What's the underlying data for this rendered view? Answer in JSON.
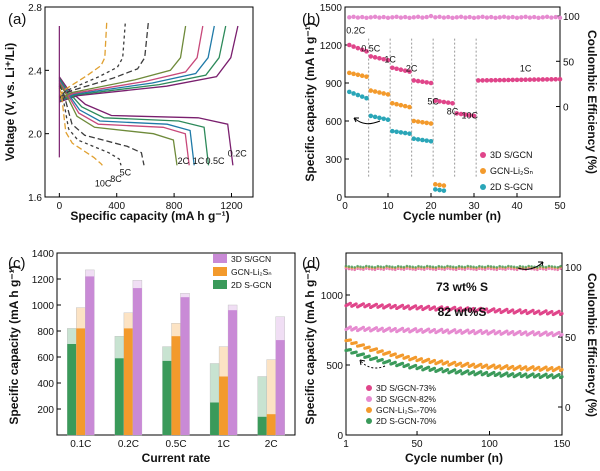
{
  "colors": {
    "c1": "#7a1f6e",
    "c2": "#2d8a5a",
    "c3": "#1f7aa8",
    "c4": "#c7487a",
    "c5": "#2a4f8f",
    "c6": "#3c3c3c",
    "c7": "#6e8a3a",
    "c8": "#e0a030",
    "pink": "#e0458a",
    "orange": "#f39a2c",
    "teal": "#2aa6b8",
    "lightpink": "#e68ad0",
    "green": "#3a9a5a",
    "lavender": "#c98ad6",
    "violet": "#c98ad6"
  },
  "chart_data": [
    {
      "panel": "(a)",
      "type": "line",
      "xlabel": "Specific capacity (mA h g⁻¹)",
      "ylabel": "Voltage (V, vs. Li⁺/Li)",
      "xlim": [
        -100,
        1350
      ],
      "ylim": [
        1.6,
        2.8
      ],
      "xticks": [
        0,
        400,
        800,
        1200
      ],
      "yticks": [
        1.6,
        2.0,
        2.4,
        2.8
      ],
      "rate_labels": [
        {
          "text": "0.2C",
          "x": 1240,
          "y": 1.855,
          "color": "c1"
        },
        {
          "text": "0.5C",
          "x": 1085,
          "y": 1.81,
          "color": "c2"
        },
        {
          "text": "1C",
          "x": 970,
          "y": 1.81,
          "color": "c3"
        },
        {
          "text": "2C",
          "x": 865,
          "y": 1.81,
          "color": "c6"
        },
        {
          "text": "5C",
          "x": 460,
          "y": 1.735,
          "color": "c6"
        },
        {
          "text": "8C",
          "x": 395,
          "y": 1.695,
          "color": "c6"
        },
        {
          "text": "10C",
          "x": 305,
          "y": 1.665,
          "color": "c6"
        }
      ],
      "series": [
        {
          "color": "c1",
          "dash": "",
          "charge_cap": 1245,
          "dis_cap": 1210,
          "upper": 2.105,
          "lower": 2.1,
          "top": 2.68
        },
        {
          "color": "c2",
          "dash": "",
          "charge_cap": 1160,
          "dis_cap": 1040,
          "upper": 2.09,
          "lower": 2.08,
          "top": 2.68
        },
        {
          "color": "c3",
          "dash": "",
          "charge_cap": 1080,
          "dis_cap": 940,
          "upper": 2.07,
          "lower": 2.06,
          "top": 2.68
        },
        {
          "color": "c4",
          "dash": "",
          "charge_cap": 1000,
          "dis_cap": 905,
          "upper": 2.05,
          "lower": 2.04,
          "top": 2.68
        },
        {
          "color": "c7",
          "dash": "",
          "charge_cap": 880,
          "dis_cap": 820,
          "upper": 2.03,
          "lower": 2.0,
          "top": 2.68
        },
        {
          "color": "c6",
          "dash": "6,3",
          "charge_cap": 620,
          "dis_cap": 590,
          "upper": 1.98,
          "lower": 1.92,
          "top": 2.7
        },
        {
          "color": "c6",
          "dash": "3,3",
          "charge_cap": 460,
          "dis_cap": 430,
          "upper": 1.95,
          "lower": 1.88,
          "top": 2.7
        },
        {
          "color": "c8",
          "dash": "6,3",
          "charge_cap": 330,
          "dis_cap": 300,
          "upper": 1.93,
          "lower": 1.85,
          "top": 2.7
        }
      ]
    },
    {
      "panel": "(b)",
      "type": "scatter",
      "xlabel": "Cycle number (n)",
      "ylabel": "Specific capacity (mA h g⁻¹)",
      "ylabel2": "Coulombic Efficiency (%)",
      "xlim": [
        0,
        50
      ],
      "ylim": [
        0,
        1500
      ],
      "ylim2": [
        -100,
        110
      ],
      "xticks": [
        0,
        10,
        20,
        30,
        40,
        50
      ],
      "yticks": [
        0,
        300,
        600,
        900,
        1200,
        1500
      ],
      "yticks2": [
        0,
        50,
        100
      ],
      "rate_labels": [
        {
          "text": "0.2C",
          "x": 2.5,
          "y": 1290
        },
        {
          "text": "0.5C",
          "x": 6,
          "y": 1150
        },
        {
          "text": "1C",
          "x": 10.5,
          "y": 1060
        },
        {
          "text": "2C",
          "x": 15.5,
          "y": 990
        },
        {
          "text": "5C",
          "x": 20.5,
          "y": 730
        },
        {
          "text": "8C",
          "x": 25,
          "y": 650
        },
        {
          "text": "10C",
          "x": 29,
          "y": 620
        },
        {
          "text": "1C",
          "x": 42,
          "y": 990
        }
      ],
      "legend": [
        "3D S/GCN",
        "GCN-Li₂Sₙ",
        "2D S-GCN"
      ],
      "series": [
        {
          "name": "3D S/GCN",
          "color": "pink",
          "segments": [
            [
              1,
              5,
              1200,
              1150
            ],
            [
              6,
              10,
              1110,
              1080
            ],
            [
              11,
              15,
              1020,
              990
            ],
            [
              16,
              20,
              920,
              900
            ],
            [
              21,
              25,
              760,
              740
            ],
            [
              26,
              30,
              660,
              640
            ],
            [
              31,
              50,
              920,
              930
            ]
          ]
        },
        {
          "name": "GCN-Li₂Sₙ",
          "color": "orange",
          "segments": [
            [
              1,
              5,
              980,
              950
            ],
            [
              6,
              10,
              840,
              810
            ],
            [
              11,
              15,
              740,
              710
            ],
            [
              16,
              20,
              600,
              580
            ],
            [
              21,
              23,
              100,
              90
            ]
          ]
        },
        {
          "name": "2D S-GCN",
          "color": "teal",
          "segments": [
            [
              1,
              5,
              830,
              780
            ],
            [
              6,
              10,
              640,
              610
            ],
            [
              11,
              15,
              520,
              500
            ],
            [
              16,
              20,
              460,
              440
            ],
            [
              21,
              23,
              60,
              50
            ]
          ]
        },
        {
          "name": "CE",
          "color": "lightpink",
          "ce": true,
          "values_range": [
            97,
            100
          ]
        }
      ]
    },
    {
      "panel": "(c)",
      "type": "bar",
      "xlabel": "Current rate",
      "ylabel": "Specific capacity (mA h g⁻¹)",
      "ylim": [
        0,
        1400
      ],
      "yticks": [
        200,
        400,
        600,
        800,
        1000,
        1200,
        1400
      ],
      "categories": [
        "0.1C",
        "0.2C",
        "0.5C",
        "1C",
        "2C"
      ],
      "legend": [
        "3D S/GCN",
        "GCN-Li₂Sₙ",
        "2D S-GCN"
      ],
      "series": [
        {
          "name": "2D S-GCN",
          "color": "green",
          "values": [
            700,
            590,
            570,
            250,
            140
          ],
          "initial": [
            820,
            760,
            680,
            550,
            450
          ]
        },
        {
          "name": "GCN-Li₂Sₙ",
          "color": "orange",
          "values": [
            820,
            820,
            760,
            450,
            160
          ],
          "initial": [
            980,
            940,
            860,
            680,
            580
          ]
        },
        {
          "name": "3D S/GCN",
          "color": "violet",
          "values": [
            1220,
            1130,
            1060,
            960,
            730
          ],
          "initial": [
            1270,
            1190,
            1090,
            1000,
            910
          ]
        }
      ]
    },
    {
      "panel": "(d)",
      "type": "scatter",
      "xlabel": "Cycle number (n)",
      "ylabel": "Specific capacity (mA h g⁻¹)",
      "ylabel2": "Coulombic Efficiency (%)",
      "xlim": [
        1,
        150
      ],
      "ylim": [
        0,
        1300
      ],
      "ylim2": [
        -20,
        110
      ],
      "xticks": [
        1,
        50,
        100,
        150
      ],
      "yticks": [
        0,
        500,
        1000
      ],
      "yticks2": [
        0,
        50,
        100
      ],
      "annotations": [
        "73 wt% S",
        "82 wt%S"
      ],
      "legend": [
        "3D S/GCN-73%",
        "3D S/GCN-82%",
        "GCN-Li₂Sₙ-70%",
        "2D S-GCN-70%"
      ],
      "series": [
        {
          "name": "3D S/GCN-73%",
          "color": "pink",
          "start": 930,
          "end": 870
        },
        {
          "name": "3D S/GCN-82%",
          "color": "lightpink",
          "start": 760,
          "end": 720
        },
        {
          "name": "GCN-Li₂Sₙ-70%",
          "color": "orange",
          "start": 680,
          "end": 460
        },
        {
          "name": "2D S-GCN-70%",
          "color": "green",
          "start": 610,
          "end": 410
        }
      ]
    }
  ],
  "panels": {
    "a": {
      "label": "(a)"
    },
    "b": {
      "label": "(b)"
    },
    "c": {
      "label": "(c)"
    },
    "d": {
      "label": "(d)"
    }
  }
}
